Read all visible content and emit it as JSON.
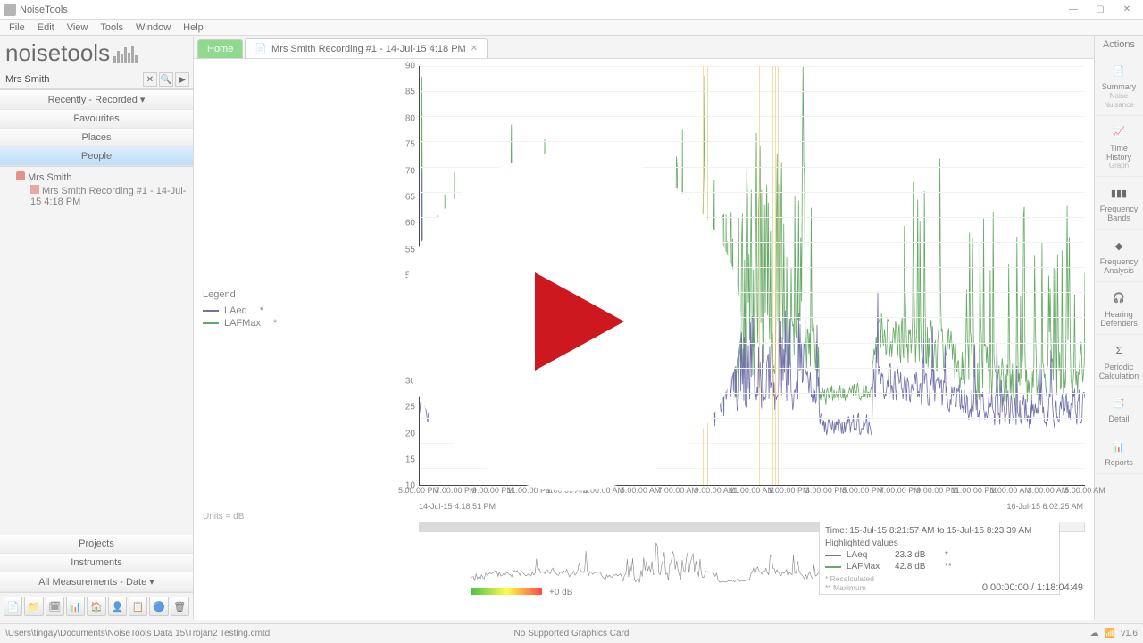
{
  "app": {
    "title": "NoiseTools"
  },
  "menu": [
    "File",
    "Edit",
    "View",
    "Tools",
    "Window",
    "Help"
  ],
  "logo_text": "noisetools",
  "search": {
    "value": "Mrs Smith"
  },
  "nav": {
    "recently": "Recently - Recorded",
    "favourites": "Favourites",
    "places": "Places",
    "people": "People"
  },
  "tree": {
    "person": "Mrs Smith",
    "recording": "Mrs Smith Recording #1 - 14-Jul-15 4:18 PM"
  },
  "bottom_nav": {
    "projects": "Projects",
    "instruments": "Instruments",
    "measurements": "All Measurements - Date"
  },
  "tabs": {
    "home": "Home",
    "doc": "Mrs Smith Recording #1 - 14-Jul-15 4:18 PM"
  },
  "legend": {
    "title": "Legend",
    "series": [
      {
        "label": "LAeq",
        "color": "#3a3a8a",
        "note": "*"
      },
      {
        "label": "LAFMax",
        "color": "#2a8a2a",
        "note": "*"
      }
    ]
  },
  "chart": {
    "ylim": [
      10,
      90
    ],
    "ytick_step": 5,
    "bg": "#ffffff",
    "grid_color": "#eeeeee",
    "xlabels": [
      "5:00:00 PM",
      "7:00:00 PM",
      "9:00:00 PM",
      "11:00:00 PM",
      "1:00:00 AM",
      "3:00:00 AM",
      "5:00:00 AM",
      "7:00:00 AM",
      "9:00:00 AM",
      "11:00:00 AM",
      "1:00:00 PM",
      "3:00:00 PM",
      "5:00:00 PM",
      "7:00:00 PM",
      "9:00:00 PM",
      "11:00:00 PM",
      "1:00:00 AM",
      "3:00:00 AM",
      "5:00:00 AM"
    ],
    "date_left": "14-Jul-15 4:18:51 PM",
    "date_right": "16-Jul-15 6:02:25 AM",
    "units": "Units = dB",
    "highlights_pct": [
      42.5,
      43.2,
      51.0,
      51.6,
      53.0,
      53.4,
      53.8
    ]
  },
  "info": {
    "time_line": "Time: 15-Jul-15 8:21:57 AM  to  15-Jul-15 8:23:39 AM",
    "heading": "Highlighted values",
    "rows": [
      {
        "label": "LAeq",
        "value": "23.3 dB",
        "note": "*",
        "color": "#3a3a8a"
      },
      {
        "label": "LAFMax",
        "value": "42.8 dB",
        "note": "**",
        "color": "#2a8a2a"
      }
    ],
    "foot1": "* Recalculated",
    "foot2": "** Maximum"
  },
  "gradient_label": "+0 dB",
  "timecounter": "0:00:00:00 / 1:18:04:49",
  "actions_title": "Actions",
  "actions": [
    {
      "label": "Summary",
      "sub": "Noise Nuisance",
      "icon": "summary"
    },
    {
      "label": "Time History",
      "sub": "Graph",
      "icon": "timehist"
    },
    {
      "label": "Frequency Bands",
      "sub": "",
      "icon": "bars"
    },
    {
      "label": "Frequency Analysis",
      "sub": "",
      "icon": "freq3d"
    },
    {
      "label": "Hearing Defenders",
      "sub": "",
      "icon": "headphones"
    },
    {
      "label": "Periodic Calculation",
      "sub": "",
      "icon": "sigma"
    },
    {
      "label": "Detail",
      "sub": "",
      "icon": "detail"
    },
    {
      "label": "Reports",
      "sub": "",
      "icon": "reports"
    }
  ],
  "status": {
    "path": "\\Users\\tingay\\Documents\\NoiseTools Data 15\\Trojan2 Testing.cmtd",
    "mid": "No Supported Graphics Card",
    "version": "v1.6"
  }
}
